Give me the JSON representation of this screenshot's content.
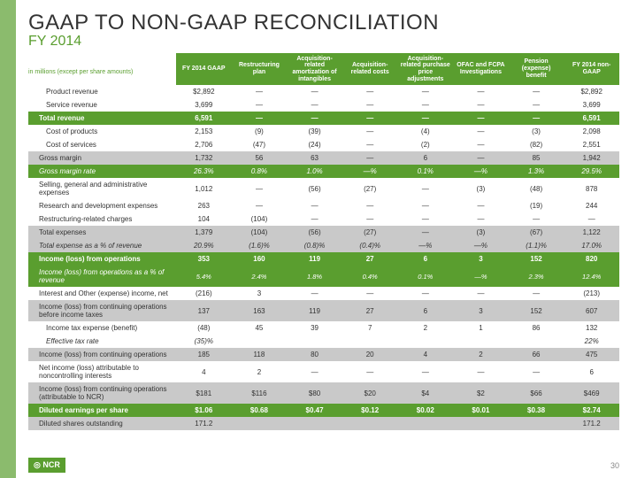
{
  "title": "GAAP TO NON-GAAP RECONCILIATION",
  "subtitle": "FY 2014",
  "note": "in millions (except per share amounts)",
  "logo": "◎ NCR",
  "page": "30",
  "colors": {
    "green": "#5a9e2f",
    "gray": "#c9c9c9",
    "white": "#ffffff"
  },
  "headers": [
    "",
    "FY 2014 GAAP",
    "Restructuring plan",
    "Acquisition-related amortization of intangibles",
    "Acquisition-related costs",
    "Acquisition-related purchase price adjustments",
    "OFAC and FCPA Investigations",
    "Pension (expense) benefit",
    "FY 2014 non-GAAP"
  ],
  "rows": [
    {
      "s": "r-white sub",
      "c": [
        "Product revenue",
        "$2,892",
        "—",
        "—",
        "—",
        "—",
        "—",
        "—",
        "$2,892"
      ]
    },
    {
      "s": "r-white sub",
      "c": [
        "Service revenue",
        "3,699",
        "—",
        "—",
        "—",
        "—",
        "—",
        "—",
        "3,699"
      ]
    },
    {
      "s": "r-green",
      "c": [
        "Total revenue",
        "6,591",
        "—",
        "—",
        "—",
        "—",
        "—",
        "—",
        "6,591"
      ]
    },
    {
      "s": "r-white sub",
      "c": [
        "Cost of products",
        "2,153",
        "(9)",
        "(39)",
        "—",
        "(4)",
        "—",
        "(3)",
        "2,098"
      ]
    },
    {
      "s": "r-white sub",
      "c": [
        "Cost of services",
        "2,706",
        "(47)",
        "(24)",
        "—",
        "(2)",
        "—",
        "(82)",
        "2,551"
      ]
    },
    {
      "s": "r-gray",
      "c": [
        "Gross margin",
        "1,732",
        "56",
        "63",
        "—",
        "6",
        "—",
        "85",
        "1,942"
      ]
    },
    {
      "s": "r-green-it",
      "c": [
        "Gross margin rate",
        "26.3%",
        "0.8%",
        "1.0%",
        "—%",
        "0.1%",
        "—%",
        "1.3%",
        "29.5%"
      ]
    },
    {
      "s": "r-white",
      "c": [
        "Selling, general and administrative expenses",
        "1,012",
        "—",
        "(56)",
        "(27)",
        "—",
        "(3)",
        "(48)",
        "878"
      ]
    },
    {
      "s": "r-white",
      "c": [
        "Research and development expenses",
        "263",
        "—",
        "—",
        "—",
        "—",
        "—",
        "(19)",
        "244"
      ]
    },
    {
      "s": "r-white",
      "c": [
        "Restructuring-related charges",
        "104",
        "(104)",
        "—",
        "—",
        "—",
        "—",
        "—",
        "—"
      ]
    },
    {
      "s": "r-gray",
      "c": [
        "Total expenses",
        "1,379",
        "(104)",
        "(56)",
        "(27)",
        "—",
        "(3)",
        "(67)",
        "1,122"
      ]
    },
    {
      "s": "r-gray-it",
      "c": [
        "Total expense as a % of revenue",
        "20.9%",
        "(1.6)%",
        "(0.8)%",
        "(0.4)%",
        "—%",
        "—%",
        "(1.1)%",
        "17.0%"
      ]
    },
    {
      "s": "r-green",
      "c": [
        "Income (loss) from operations",
        "353",
        "160",
        "119",
        "27",
        "6",
        "3",
        "152",
        "820"
      ]
    },
    {
      "s": "r-green-sub",
      "c": [
        "Income (loss) from operations as a % of revenue",
        "5.4%",
        "2.4%",
        "1.8%",
        "0.4%",
        "0.1%",
        "—%",
        "2.3%",
        "12.4%"
      ]
    },
    {
      "s": "r-white",
      "c": [
        "Interest and Other (expense) income, net",
        "(216)",
        "3",
        "—",
        "—",
        "—",
        "—",
        "—",
        "(213)"
      ]
    },
    {
      "s": "r-gray",
      "c": [
        "Income (loss) from continuing operations before income taxes",
        "137",
        "163",
        "119",
        "27",
        "6",
        "3",
        "152",
        "607"
      ]
    },
    {
      "s": "r-white sub",
      "c": [
        "Income tax expense (benefit)",
        "(48)",
        "45",
        "39",
        "7",
        "2",
        "1",
        "86",
        "132"
      ]
    },
    {
      "s": "r-white-it sub",
      "c": [
        "Effective tax rate",
        "(35)%",
        "",
        "",
        "",
        "",
        "",
        "",
        "22%"
      ]
    },
    {
      "s": "r-gray",
      "c": [
        "Income (loss) from continuing operations",
        "185",
        "118",
        "80",
        "20",
        "4",
        "2",
        "66",
        "475"
      ]
    },
    {
      "s": "r-white",
      "c": [
        "Net income (loss) attributable to noncontrolling interests",
        "4",
        "2",
        "—",
        "—",
        "—",
        "—",
        "—",
        "6"
      ]
    },
    {
      "s": "r-gray",
      "c": [
        "Income (loss) from continuing operations (attributable to NCR)",
        "$181",
        "$116",
        "$80",
        "$20",
        "$4",
        "$2",
        "$66",
        "$469"
      ]
    },
    {
      "s": "r-green",
      "c": [
        "Diluted earnings per share",
        "$1.06",
        "$0.68",
        "$0.47",
        "$0.12",
        "$0.02",
        "$0.01",
        "$0.38",
        "$2.74"
      ]
    },
    {
      "s": "r-gray",
      "c": [
        "Diluted shares outstanding",
        "171.2",
        "",
        "",
        "",
        "",
        "",
        "",
        "171.2"
      ]
    }
  ]
}
